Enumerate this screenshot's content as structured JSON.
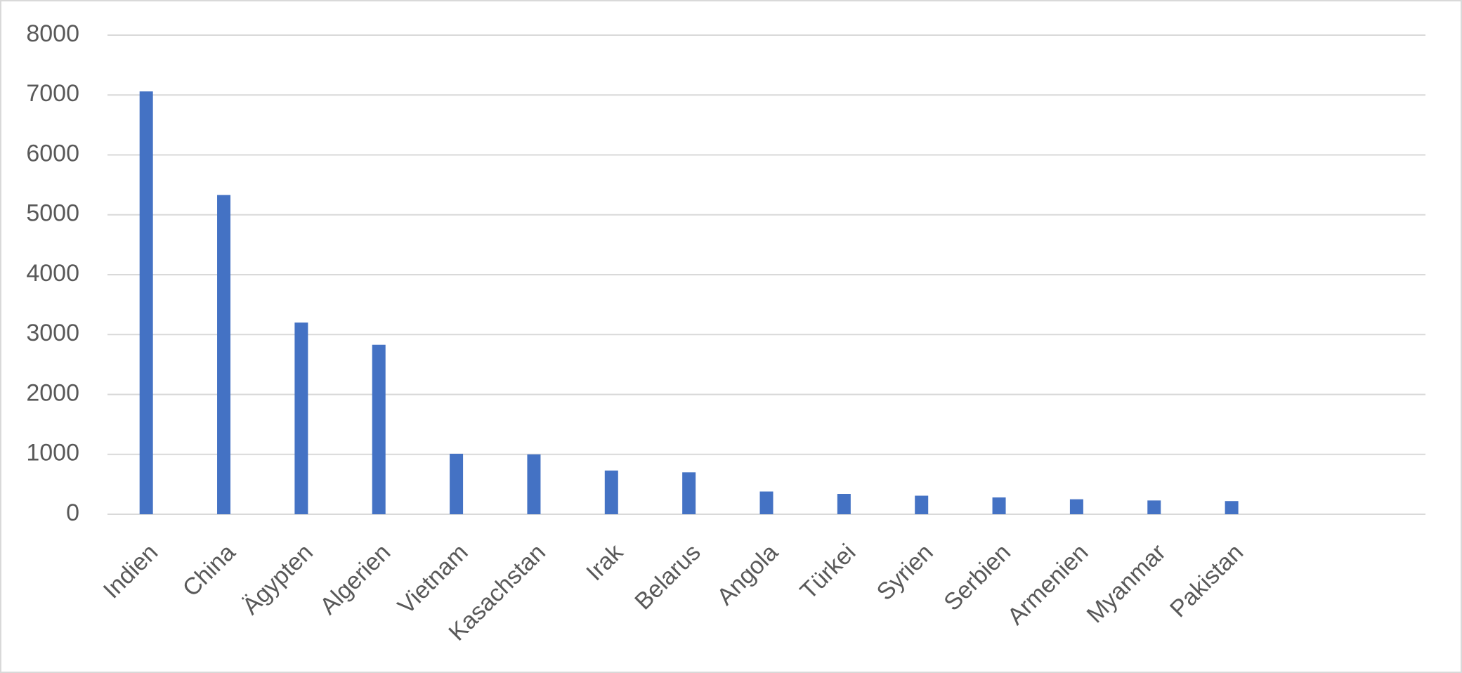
{
  "chart_data": {
    "type": "bar",
    "categories": [
      "Indien",
      "China",
      "Ägypten",
      "Algerien",
      "Vietnam",
      "Kasachstan",
      "Irak",
      "Belarus",
      "Angola",
      "Türkei",
      "Syrien",
      "Serbien",
      "Armenien",
      "Myanmar",
      "Pakistan",
      null,
      null
    ],
    "values": [
      7060,
      5330,
      3200,
      2830,
      1010,
      1000,
      730,
      700,
      380,
      340,
      310,
      280,
      250,
      230,
      220,
      null,
      null
    ],
    "color": "#4472c4",
    "ylim": [
      0,
      8000
    ],
    "yticks": [
      0,
      1000,
      2000,
      3000,
      4000,
      5000,
      6000,
      7000,
      8000
    ],
    "grid": true
  }
}
